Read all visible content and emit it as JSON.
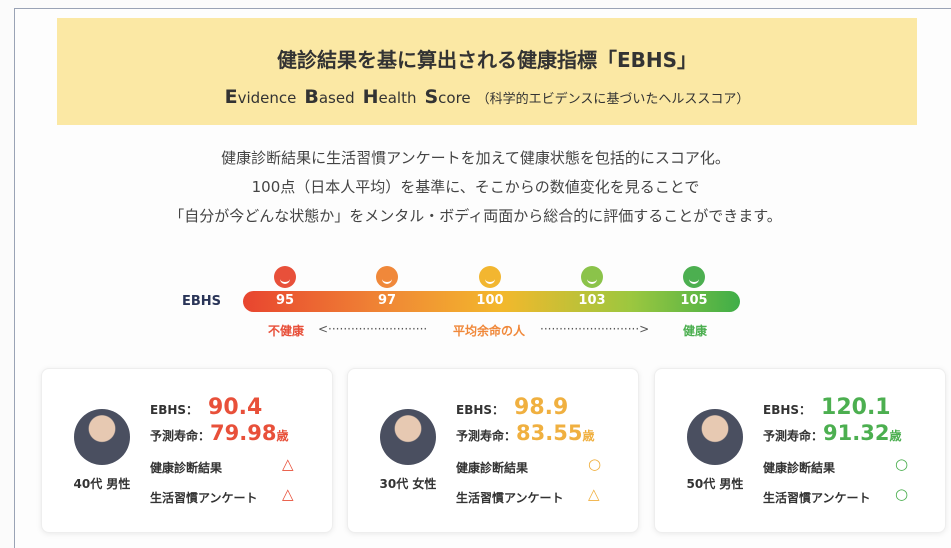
{
  "header": {
    "title": "健診結果を基に算出される健康指標「EBHS」",
    "subtitle": [
      {
        "initial": "E",
        "rest": "vidence"
      },
      {
        "initial": "B",
        "rest": "ased"
      },
      {
        "initial": "H",
        "rest": "ealth"
      },
      {
        "initial": "S",
        "rest": "core"
      }
    ],
    "subtitle_note": "（科学的エビデンスに基づいたヘルススコア）"
  },
  "description": [
    "健康診断結果に生活習慣アンケートを加えて健康状態を包括的にスコア化。",
    "100点（日本人平均）を基準に、そこからの数値変化を見ることで",
    "「自分が今どんな状態か」をメンタル・ボディ両面から総合的に評価することができます。"
  ],
  "scale": {
    "label": "EBHS",
    "points": [
      {
        "value": 95,
        "color": "#e8503a"
      },
      {
        "value": 97,
        "color": "#f0883a"
      },
      {
        "value": 100,
        "color": "#f2b630"
      },
      {
        "value": 103,
        "color": "#8bc34a"
      },
      {
        "value": 105,
        "color": "#4caf50"
      }
    ],
    "left": "不健康",
    "middle": "平均余命の人",
    "right": "健康"
  },
  "cards": [
    {
      "person": "40代 男性",
      "ebhs_label": "EBHS：",
      "ebhs": "90.4",
      "life_label": "予測寿命：",
      "life": "79.98",
      "unit": "歳",
      "color": "#e8503a",
      "rows": [
        {
          "label": "健康診断結果",
          "mark": "△",
          "color": "#e8503a"
        },
        {
          "label": "生活習慣アンケート",
          "mark": "△",
          "color": "#e8503a"
        }
      ]
    },
    {
      "person": "30代 女性",
      "ebhs_label": "EBHS：",
      "ebhs": "98.9",
      "life_label": "予測寿命：",
      "life": "83.55",
      "unit": "歳",
      "color": "#f0b040",
      "rows": [
        {
          "label": "健康診断結果",
          "mark": "○",
          "color": "#f0b040"
        },
        {
          "label": "生活習慣アンケート",
          "mark": "△",
          "color": "#f0b040"
        }
      ]
    },
    {
      "person": "50代 男性",
      "ebhs_label": "EBHS：",
      "ebhs": "120.1",
      "life_label": "予測寿命：",
      "life": "91.32",
      "unit": "歳",
      "color": "#4caf50",
      "rows": [
        {
          "label": "健康診断結果",
          "mark": "○",
          "color": "#4caf50"
        },
        {
          "label": "生活習慣アンケート",
          "mark": "○",
          "color": "#4caf50"
        }
      ]
    }
  ]
}
